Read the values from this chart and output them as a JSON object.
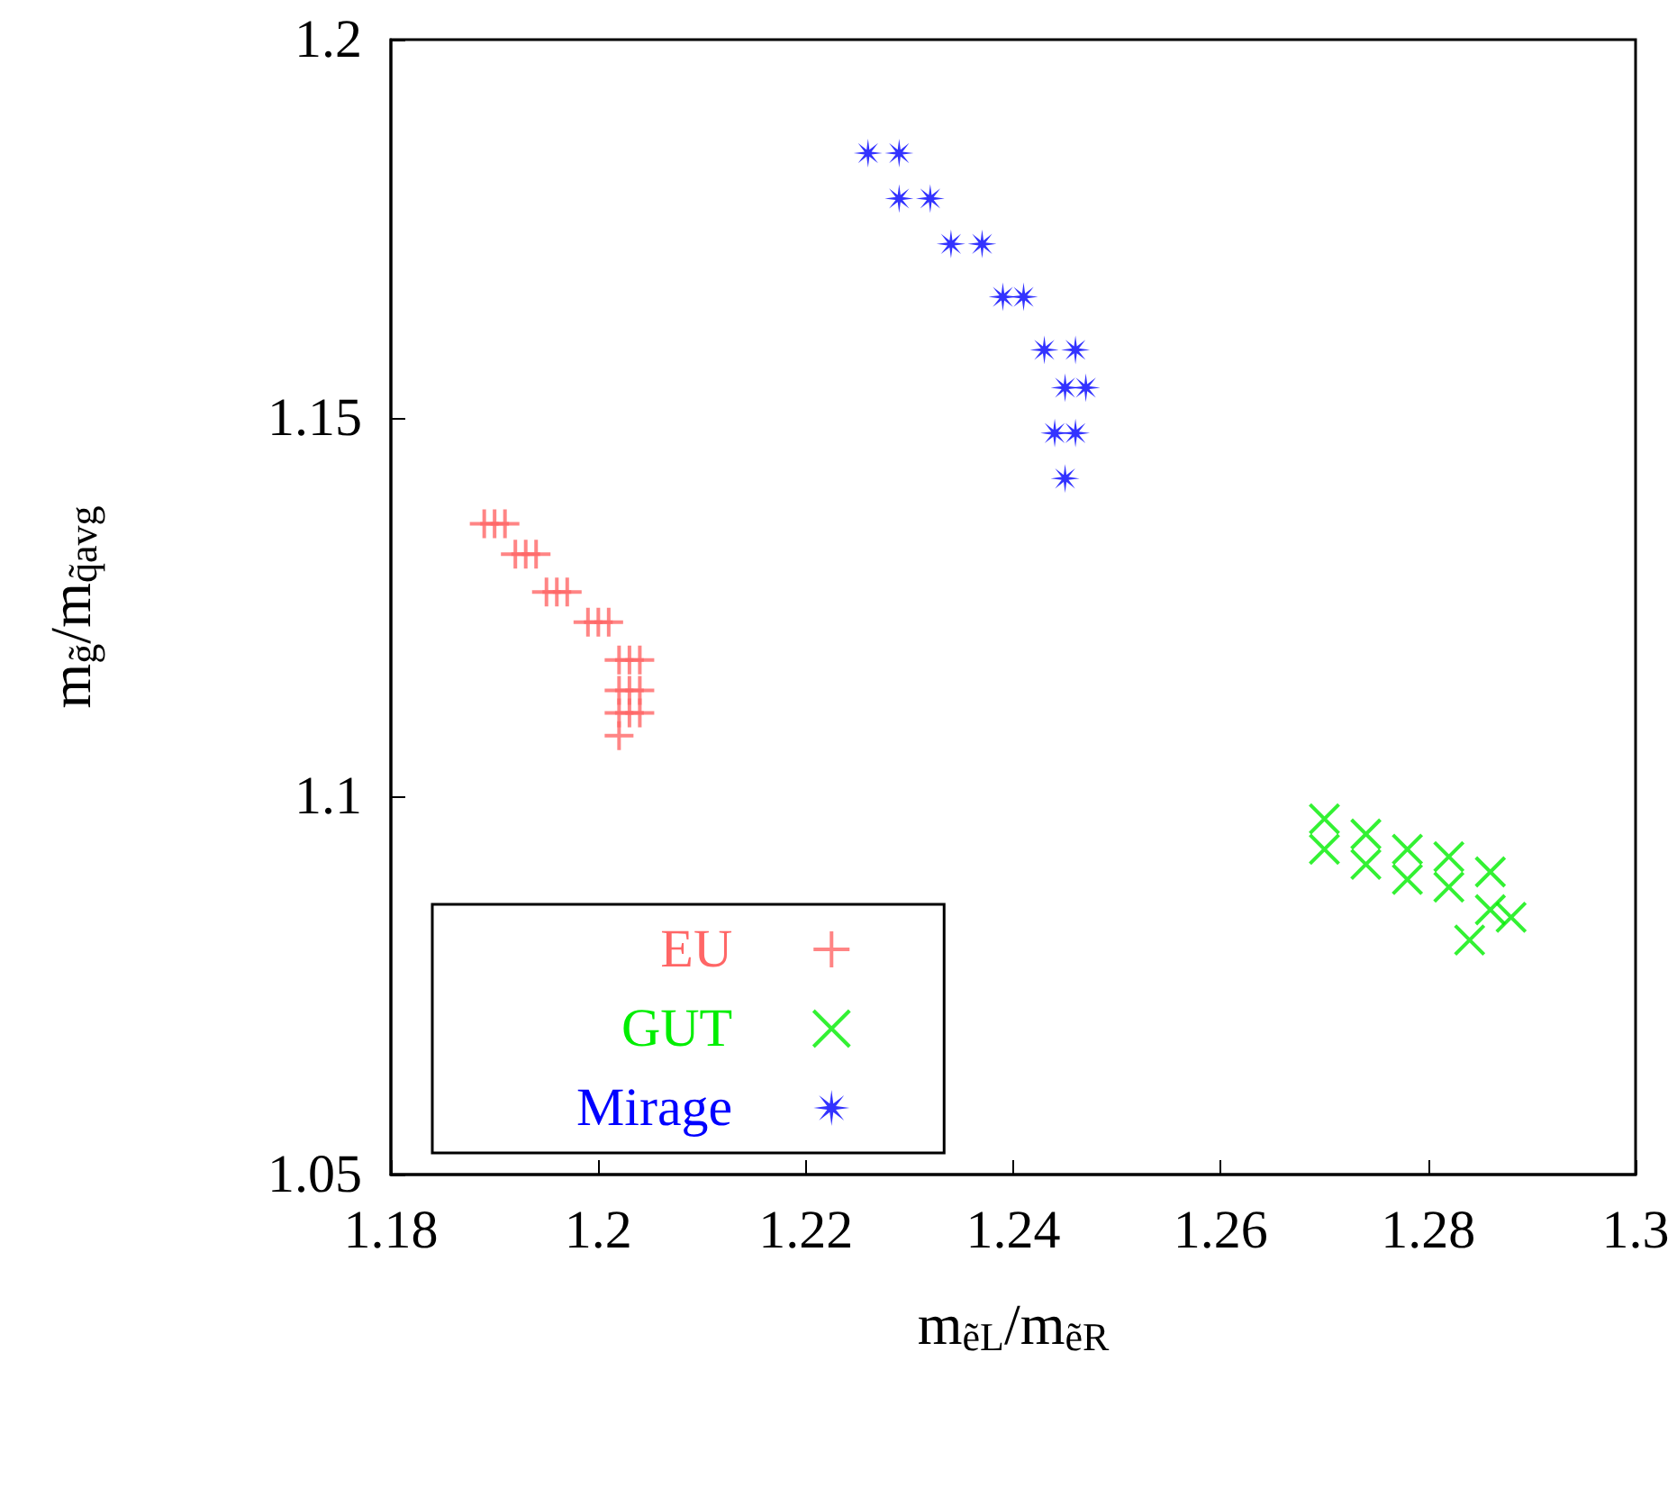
{
  "chart_data": {
    "type": "scatter",
    "xlabel": "m$_{ẽL}$/m$_{ẽR}$",
    "ylabel": "m$_{g̃}$/m$_{q̃avg}$",
    "xlim": [
      1.18,
      1.3
    ],
    "xticks": [
      1.18,
      1.2,
      1.22,
      1.24,
      1.26,
      1.28,
      1.3
    ],
    "ylim": [
      1.05,
      1.2
    ],
    "yticks": [
      1.05,
      1.1,
      1.15,
      1.2
    ],
    "grid": false,
    "legend": "bottom left",
    "series": [
      {
        "name": "EU",
        "color": "#ff6666",
        "marker": "cross",
        "x": [
          1.189,
          1.19,
          1.191,
          1.192,
          1.193,
          1.194,
          1.195,
          1.196,
          1.197,
          1.199,
          1.2,
          1.201,
          1.202,
          1.203,
          1.204,
          1.202,
          1.203,
          1.204,
          1.202,
          1.203,
          1.204,
          1.202
        ],
        "values": [
          1.136,
          1.136,
          1.136,
          1.132,
          1.132,
          1.132,
          1.127,
          1.127,
          1.127,
          1.123,
          1.123,
          1.123,
          1.118,
          1.118,
          1.118,
          1.114,
          1.114,
          1.114,
          1.111,
          1.111,
          1.111,
          1.108
        ]
      },
      {
        "name": "GUT",
        "color": "#00ee00",
        "marker": "x",
        "x": [
          1.27,
          1.27,
          1.274,
          1.274,
          1.278,
          1.278,
          1.282,
          1.282,
          1.286,
          1.286,
          1.288,
          1.284
        ],
        "values": [
          1.097,
          1.093,
          1.095,
          1.091,
          1.093,
          1.089,
          1.092,
          1.088,
          1.09,
          1.085,
          1.084,
          1.081
        ]
      },
      {
        "name": "Mirage",
        "color": "#0000ff",
        "marker": "star",
        "x": [
          1.226,
          1.229,
          1.229,
          1.232,
          1.234,
          1.237,
          1.239,
          1.241,
          1.243,
          1.246,
          1.245,
          1.247,
          1.244,
          1.246,
          1.245
        ],
        "values": [
          1.185,
          1.185,
          1.179,
          1.179,
          1.173,
          1.173,
          1.166,
          1.166,
          1.159,
          1.159,
          1.154,
          1.154,
          1.148,
          1.148,
          1.142
        ]
      }
    ]
  }
}
